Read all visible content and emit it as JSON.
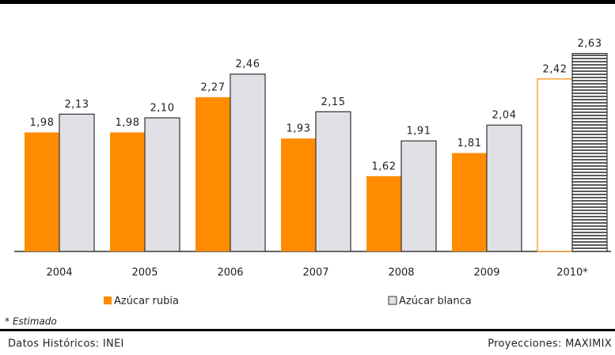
{
  "chart_data": {
    "type": "bar",
    "categories": [
      "2004",
      "2005",
      "2006",
      "2007",
      "2008",
      "2009",
      "2010*"
    ],
    "series": [
      {
        "name": "Azúcar rubia",
        "color": "#ff8c00",
        "values": [
          1.98,
          1.98,
          2.27,
          1.93,
          1.62,
          1.81,
          2.42
        ],
        "value_labels": [
          "1,98",
          "1,98",
          "2,27",
          "1,93",
          "1,62",
          "1,81",
          "2,42"
        ]
      },
      {
        "name": "Azúcar blanca",
        "color": "#e0e0e6",
        "values": [
          2.13,
          2.1,
          2.46,
          2.15,
          1.91,
          2.04,
          2.63
        ],
        "value_labels": [
          "2,13",
          "2,10",
          "2,46",
          "2,15",
          "1,91",
          "2,04",
          "2,63"
        ]
      }
    ],
    "ylim": [
      1,
      2.8
    ],
    "note": "* Estimado",
    "source_left": "Datos Históricos: INEI",
    "source_right": "Proyecciones: MAXIMIX"
  }
}
